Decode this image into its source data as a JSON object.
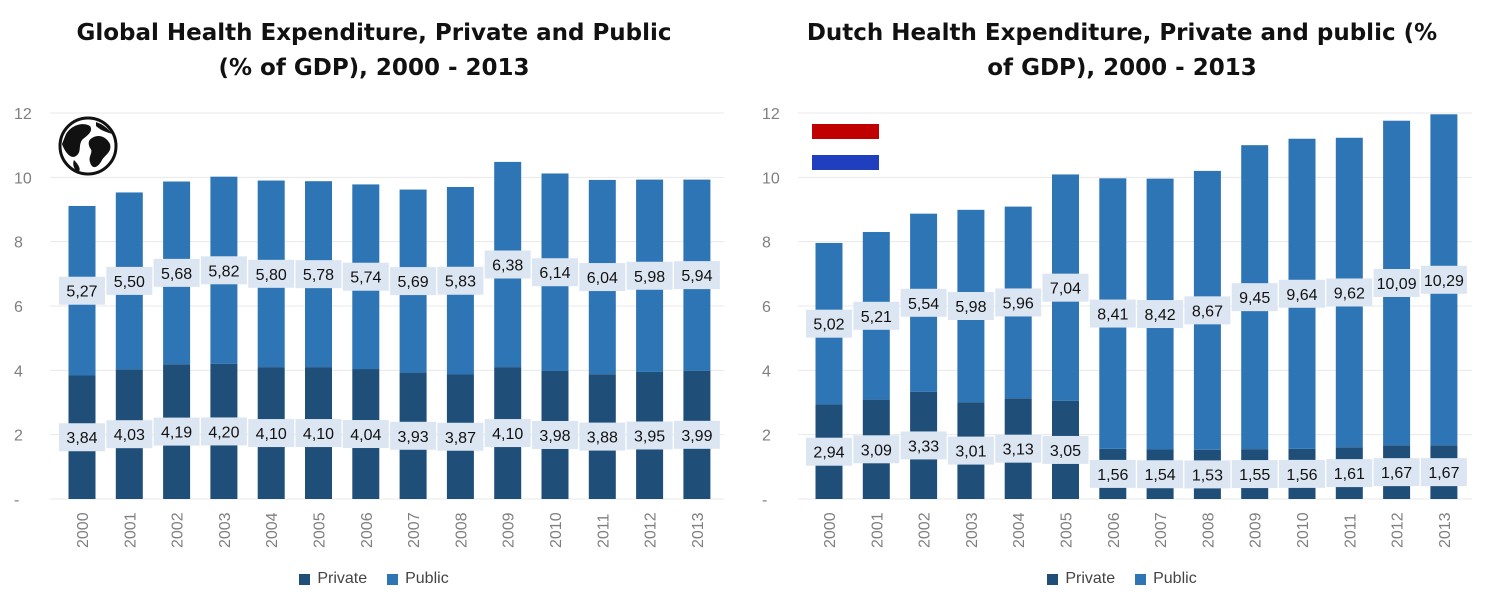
{
  "colors": {
    "private": "#1f4e79",
    "public": "#2e75b6",
    "label_band": "#dce6f2",
    "grid": "#e8e8e8"
  },
  "chart_data": [
    {
      "type": "bar",
      "stacked": true,
      "title_lines": [
        "Global Health Expenditure, Private and Public",
        "(% of GDP), 2000 - 2013"
      ],
      "categories": [
        "2000",
        "2001",
        "2002",
        "2003",
        "2004",
        "2005",
        "2006",
        "2007",
        "2008",
        "2009",
        "2010",
        "2011",
        "2012",
        "2013"
      ],
      "series": [
        {
          "name": "Private",
          "values": [
            3.84,
            4.03,
            4.19,
            4.2,
            4.1,
            4.1,
            4.04,
            3.93,
            3.87,
            4.1,
            3.98,
            3.88,
            3.95,
            3.99
          ],
          "labels": [
            "3,84",
            "4,03",
            "4,19",
            "4,20",
            "4,10",
            "4,10",
            "4,04",
            "3,93",
            "3,87",
            "4,10",
            "3,98",
            "3,88",
            "3,95",
            "3,99"
          ]
        },
        {
          "name": "Public",
          "values": [
            5.27,
            5.5,
            5.68,
            5.82,
            5.8,
            5.78,
            5.74,
            5.69,
            5.83,
            6.38,
            6.14,
            6.04,
            5.98,
            5.94
          ],
          "labels": [
            "5,27",
            "5,50",
            "5,68",
            "5,82",
            "5,80",
            "5,78",
            "5,74",
            "5,69",
            "5,83",
            "6,38",
            "6,14",
            "6,04",
            "5,98",
            "5,94"
          ]
        }
      ],
      "ylim": [
        0,
        12
      ],
      "yticks": [
        "-",
        "2",
        "4",
        "6",
        "8",
        "10",
        "12"
      ],
      "legend": [
        "Private",
        "Public"
      ],
      "legend_position": "bottom",
      "grid": true,
      "icon": "globe-icon"
    },
    {
      "type": "bar",
      "stacked": true,
      "title_lines": [
        "Dutch Health Expenditure, Private and public (%",
        "of GDP), 2000 - 2013"
      ],
      "categories": [
        "2000",
        "2001",
        "2002",
        "2003",
        "2004",
        "2005",
        "2006",
        "2007",
        "2008",
        "2009",
        "2010",
        "2011",
        "2012",
        "2013"
      ],
      "series": [
        {
          "name": "Private",
          "values": [
            2.94,
            3.09,
            3.33,
            3.01,
            3.13,
            3.05,
            1.56,
            1.54,
            1.53,
            1.55,
            1.56,
            1.61,
            1.67,
            1.67
          ],
          "labels": [
            "2,94",
            "3,09",
            "3,33",
            "3,01",
            "3,13",
            "3,05",
            "1,56",
            "1,54",
            "1,53",
            "1,55",
            "1,56",
            "1,61",
            "1,67",
            "1,67"
          ]
        },
        {
          "name": "Public",
          "values": [
            5.02,
            5.21,
            5.54,
            5.98,
            5.96,
            7.04,
            8.41,
            8.42,
            8.67,
            9.45,
            9.64,
            9.62,
            10.09,
            10.29
          ],
          "labels": [
            "5,02",
            "5,21",
            "5,54",
            "5,98",
            "5,96",
            "7,04",
            "8,41",
            "8,42",
            "8,67",
            "9,45",
            "9,64",
            "9,62",
            "10,09",
            "10,29"
          ]
        }
      ],
      "ylim": [
        0,
        12
      ],
      "yticks": [
        "-",
        "2",
        "4",
        "6",
        "8",
        "10",
        "12"
      ],
      "legend": [
        "Private",
        "Public"
      ],
      "legend_position": "bottom",
      "grid": true,
      "icon": "netherlands-flag-icon"
    }
  ]
}
